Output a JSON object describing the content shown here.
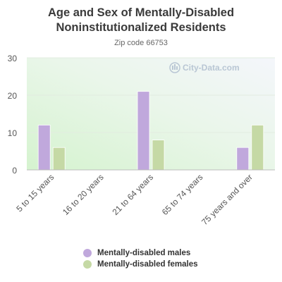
{
  "chart_data": {
    "type": "bar",
    "title": "Age and Sex of Mentally-Disabled Noninstitutionalized Residents",
    "subtitle": "Zip code 66753",
    "categories": [
      "5 to 15 years",
      "16 to 20 years",
      "21 to 64 years",
      "65 to 74 years",
      "75 years and over"
    ],
    "series": [
      {
        "name": "Mentally-disabled males",
        "values": [
          12,
          0,
          21,
          0,
          6
        ],
        "color": "#c0a8dc"
      },
      {
        "name": "Mentally-disabled females",
        "values": [
          6,
          0,
          8,
          0,
          12
        ],
        "color": "#c5d9a5"
      }
    ],
    "ylim": [
      0,
      30
    ],
    "yticks": [
      0,
      10,
      20,
      30
    ],
    "grid": true,
    "legend_position": "bottom",
    "watermark": "City-Data.com"
  }
}
